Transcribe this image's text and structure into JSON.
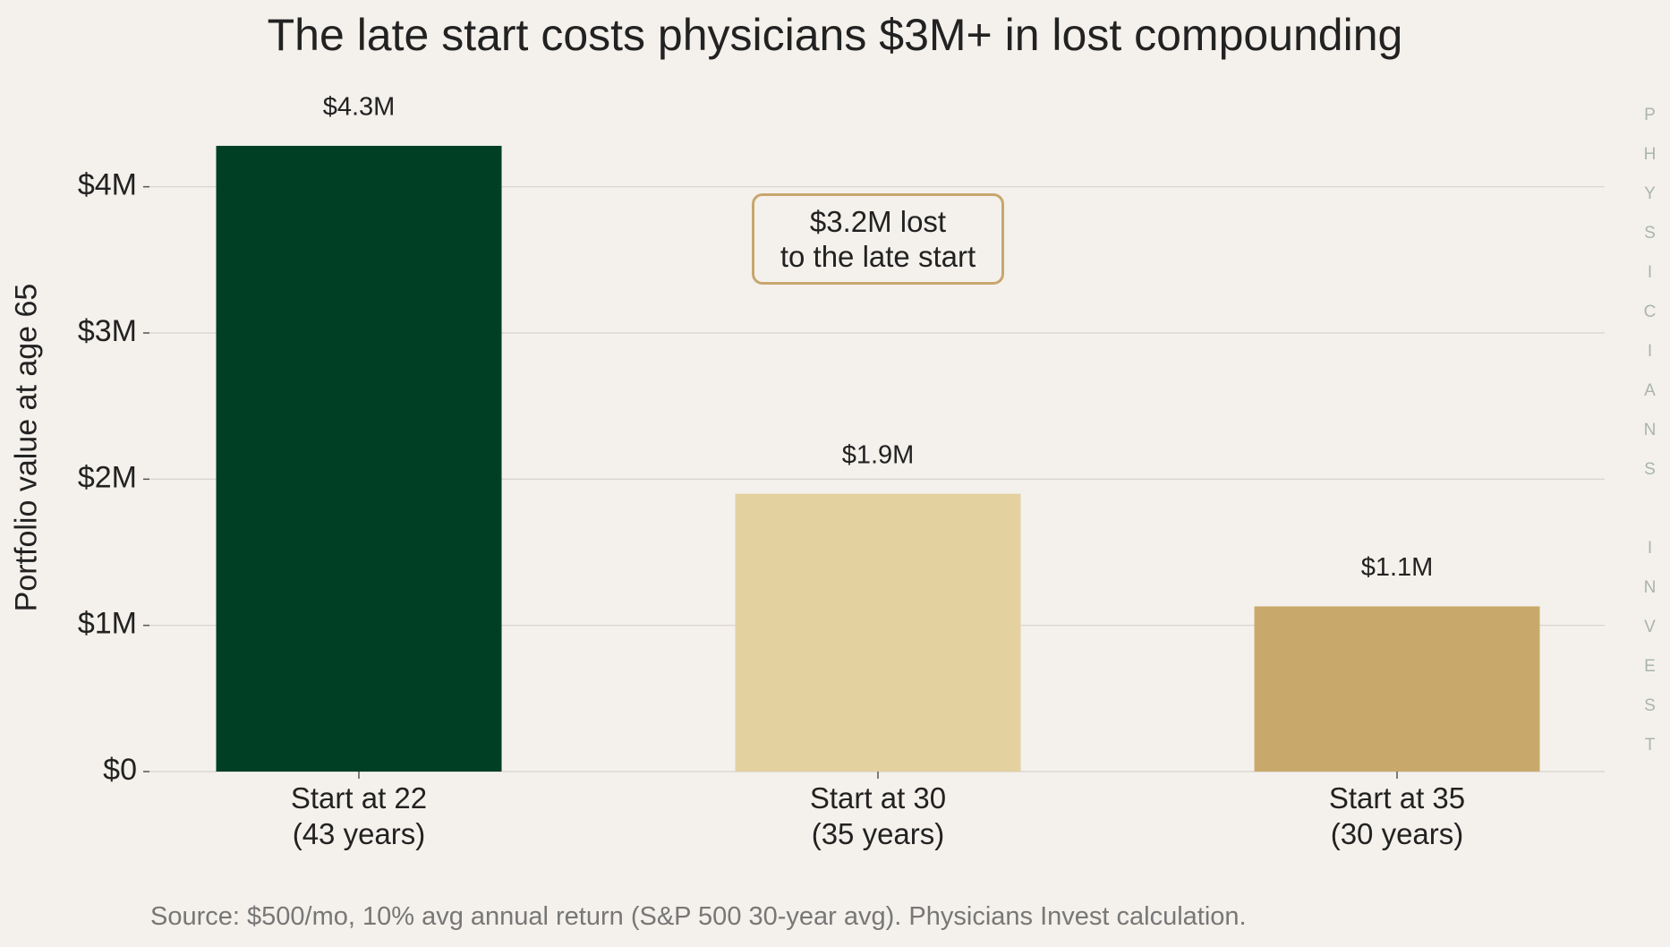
{
  "chart_data": {
    "type": "bar",
    "title": "The late start costs physicians $3M+ in lost compounding",
    "y_label": "Portfolio value at age 65",
    "categories": [
      "Start at 22\n(43 years)",
      "Start at 30\n(35 years)",
      "Start at 35\n(30 years)"
    ],
    "values": [
      4280000,
      1900000,
      1130000
    ],
    "value_labels": [
      "$4.3M",
      "$1.9M",
      "$1.1M"
    ],
    "colors": [
      "#003f24",
      "#e3d1a0",
      "#c9a96b"
    ],
    "ylim": [
      0,
      4500000
    ],
    "yticks": [
      {
        "value": 0,
        "label": "$0"
      },
      {
        "value": 1000000,
        "label": "$1M"
      },
      {
        "value": 2000000,
        "label": "$2M"
      },
      {
        "value": 3000000,
        "label": "$3M"
      },
      {
        "value": 4000000,
        "label": "$4M"
      }
    ],
    "grid": true,
    "annotation": "$3.2M lost\nto the late start",
    "source": "Source: $500/mo, 10% avg annual return (S&P 500 30-year avg). Physicians Invest calculation.",
    "watermark": "PHYSICIANS INVEST"
  }
}
